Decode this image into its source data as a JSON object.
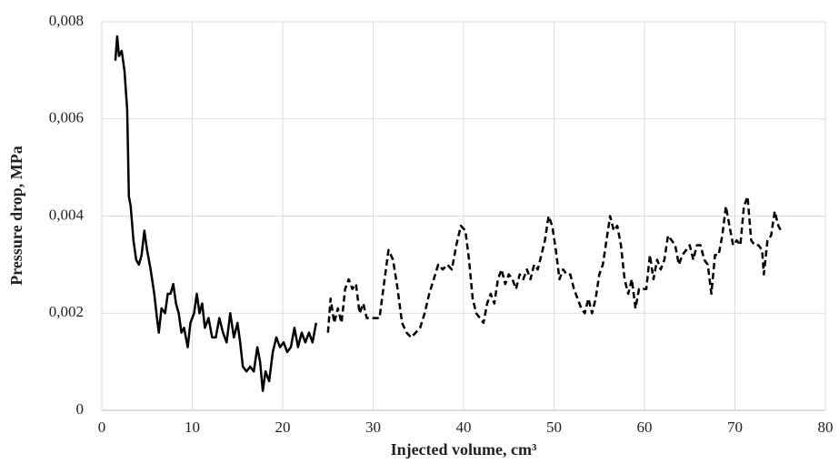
{
  "chart_data": {
    "type": "line",
    "xlabel": "Injected volume, cm³",
    "ylabel": "Pressure drop, MPa",
    "xlim": [
      0,
      80
    ],
    "xticks": [
      0,
      10,
      20,
      30,
      40,
      50,
      60,
      70,
      80
    ],
    "ylim": [
      0,
      0.008
    ],
    "yticks": [
      0,
      {
        "value": 0.002,
        "label": "0,002"
      },
      {
        "value": 0.004,
        "label": "0,004"
      },
      {
        "value": 0.006,
        "label": "0,006"
      },
      {
        "value": 0.008,
        "label": "0,008"
      }
    ],
    "grid": true,
    "series": [
      {
        "color": "#000000",
        "dashed": false,
        "x": [
          1.5,
          1.7,
          1.9,
          2.2,
          2.5,
          2.8,
          3.0,
          3.2,
          3.5,
          3.8,
          4.1,
          4.4,
          4.7,
          5.0,
          5.4,
          5.8,
          6.1,
          6.3,
          6.6,
          7.0,
          7.3,
          7.6,
          7.9,
          8.2,
          8.5,
          8.8,
          9.1,
          9.5,
          9.8,
          10.2,
          10.5,
          10.8,
          11.1,
          11.4,
          11.8,
          12.2,
          12.6,
          13.0,
          13.4,
          13.8,
          14.2,
          14.6,
          15.0,
          15.3,
          15.6,
          16.0,
          16.4,
          16.8,
          17.2,
          17.5,
          17.8,
          18.1,
          18.5,
          18.9,
          19.3,
          19.7,
          20.1,
          20.5,
          20.9,
          21.3,
          21.7,
          22.1,
          22.5,
          22.9,
          23.3,
          23.7
        ],
        "values": [
          0.0072,
          0.0077,
          0.0073,
          0.0074,
          0.007,
          0.0062,
          0.0044,
          0.0042,
          0.0035,
          0.0031,
          0.003,
          0.0032,
          0.0037,
          0.0033,
          0.0029,
          0.0024,
          0.0019,
          0.0016,
          0.0021,
          0.002,
          0.0024,
          0.0024,
          0.0026,
          0.0022,
          0.002,
          0.0016,
          0.0017,
          0.0013,
          0.0018,
          0.002,
          0.0024,
          0.002,
          0.0022,
          0.0017,
          0.0019,
          0.0015,
          0.0015,
          0.0019,
          0.0016,
          0.0014,
          0.002,
          0.0015,
          0.0018,
          0.0014,
          0.0009,
          0.0008,
          0.0009,
          0.0008,
          0.0013,
          0.001,
          0.0004,
          0.0008,
          0.0006,
          0.0012,
          0.0015,
          0.0013,
          0.0014,
          0.0012,
          0.0013,
          0.0017,
          0.0013,
          0.0016,
          0.0014,
          0.0016,
          0.0014,
          0.0018
        ]
      },
      {
        "color": "#000000",
        "dashed": true,
        "x": [
          25.0,
          25.3,
          25.7,
          26.1,
          26.5,
          26.9,
          27.3,
          27.7,
          28.1,
          28.5,
          28.9,
          29.3,
          29.7,
          30.2,
          30.7,
          31.2,
          31.7,
          32.2,
          32.7,
          33.2,
          33.7,
          34.2,
          34.7,
          35.2,
          35.7,
          36.2,
          36.7,
          37.2,
          37.7,
          38.2,
          38.7,
          39.2,
          39.7,
          40.2,
          40.6,
          41.0,
          41.4,
          41.8,
          42.2,
          42.6,
          43.0,
          43.4,
          43.8,
          44.2,
          44.6,
          45.0,
          45.4,
          45.8,
          46.2,
          46.6,
          47.0,
          47.4,
          47.8,
          48.2,
          48.6,
          49.0,
          49.4,
          49.8,
          50.2,
          50.6,
          51.0,
          51.4,
          51.8,
          52.2,
          52.6,
          53.0,
          53.4,
          53.8,
          54.2,
          54.6,
          55.0,
          55.4,
          55.8,
          56.2,
          56.6,
          57.0,
          57.4,
          57.8,
          58.2,
          58.6,
          59.0,
          59.4,
          59.8,
          60.2,
          60.6,
          61.0,
          61.4,
          61.8,
          62.2,
          62.6,
          63.0,
          63.4,
          63.8,
          64.2,
          64.6,
          65.0,
          65.4,
          65.8,
          66.2,
          66.6,
          67.0,
          67.4,
          67.8,
          68.2,
          68.6,
          69.0,
          69.4,
          69.8,
          70.2,
          70.6,
          71.0,
          71.4,
          71.8,
          72.2,
          72.6,
          73.0,
          73.2,
          73.6,
          74.0,
          74.4,
          74.8,
          75.1
        ],
        "values": [
          0.0016,
          0.0023,
          0.0018,
          0.0021,
          0.0018,
          0.0025,
          0.0027,
          0.0025,
          0.0026,
          0.002,
          0.0022,
          0.0019,
          0.0019,
          0.0019,
          0.0019,
          0.0026,
          0.0033,
          0.0031,
          0.0025,
          0.0018,
          0.0016,
          0.0015,
          0.0016,
          0.0017,
          0.002,
          0.0024,
          0.0027,
          0.003,
          0.0029,
          0.003,
          0.0029,
          0.0034,
          0.0038,
          0.0037,
          0.0031,
          0.0023,
          0.002,
          0.0019,
          0.0018,
          0.0022,
          0.0024,
          0.0022,
          0.0027,
          0.0029,
          0.0026,
          0.0028,
          0.0027,
          0.0025,
          0.0028,
          0.0027,
          0.0029,
          0.0027,
          0.003,
          0.0029,
          0.0032,
          0.0035,
          0.004,
          0.0038,
          0.0033,
          0.0027,
          0.0029,
          0.0028,
          0.0028,
          0.0025,
          0.0023,
          0.0021,
          0.002,
          0.0023,
          0.002,
          0.0023,
          0.0028,
          0.003,
          0.0035,
          0.004,
          0.0037,
          0.0038,
          0.0034,
          0.0027,
          0.0024,
          0.0027,
          0.0021,
          0.0025,
          0.0025,
          0.0025,
          0.0032,
          0.0027,
          0.0031,
          0.0029,
          0.0031,
          0.0036,
          0.0035,
          0.0034,
          0.003,
          0.0032,
          0.0033,
          0.0034,
          0.0031,
          0.0034,
          0.0034,
          0.0031,
          0.003,
          0.0024,
          0.0032,
          0.0032,
          0.0036,
          0.0042,
          0.0038,
          0.0034,
          0.0035,
          0.0034,
          0.0042,
          0.0044,
          0.0035,
          0.0034,
          0.0034,
          0.0033,
          0.0028,
          0.0035,
          0.0036,
          0.0041,
          0.0038,
          0.0037
        ]
      }
    ]
  }
}
